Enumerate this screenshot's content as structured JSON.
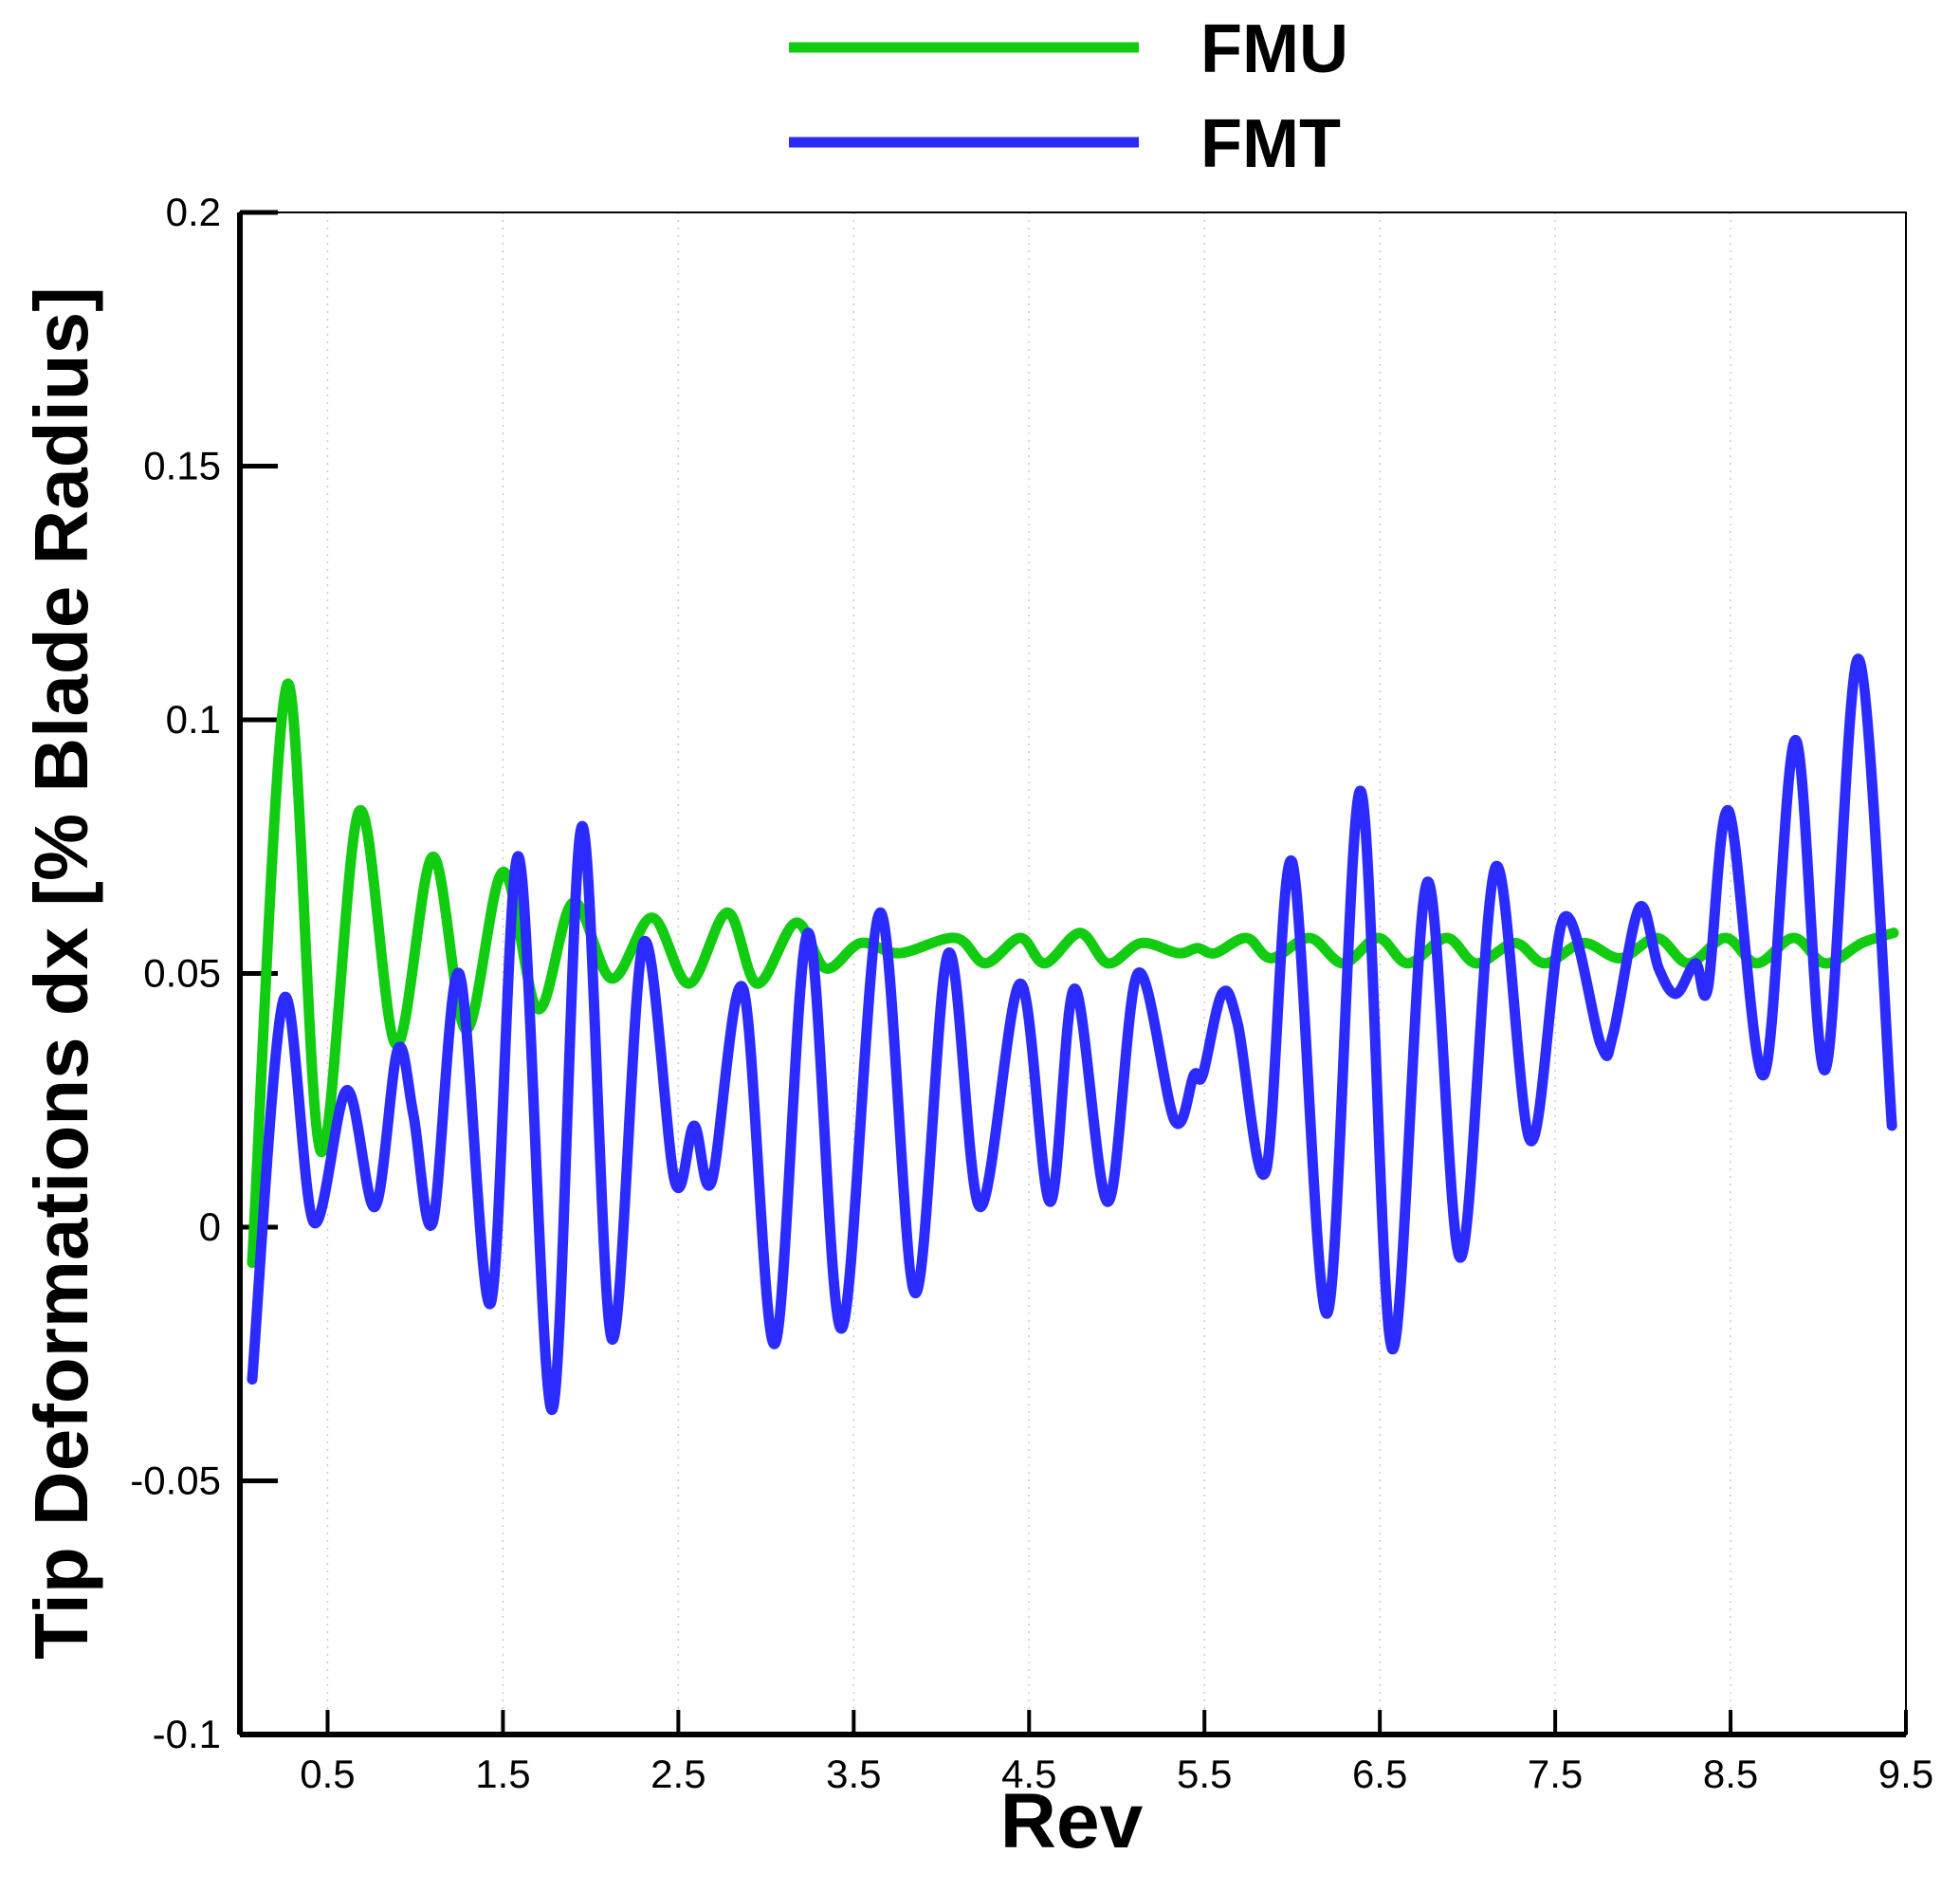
{
  "chart_data": {
    "type": "line",
    "xlabel": "Rev",
    "ylabel": "Tip Deformations dx [% Blade Radius]",
    "xlim": [
      0,
      9.5
    ],
    "ylim": [
      -0.1,
      0.2
    ],
    "xticks": [
      0.5,
      1.5,
      2.5,
      3.5,
      4.5,
      5.5,
      6.5,
      7.5,
      8.5,
      9.5
    ],
    "yticks": [
      -0.1,
      -0.05,
      0,
      0.05,
      0.1,
      0.15,
      0.2
    ],
    "grid": true,
    "legend": "top",
    "series": [
      {
        "name": "FMU",
        "color": "#11cc11",
        "x": [
          0.07,
          0.27,
          0.46,
          0.68,
          0.89,
          1.1,
          1.29,
          1.5,
          1.7,
          1.9,
          2.12,
          2.35,
          2.56,
          2.78,
          2.95,
          3.17,
          3.34,
          3.54,
          3.76,
          4.08,
          4.25,
          4.45,
          4.59,
          4.79,
          4.95,
          5.14,
          5.35,
          5.46,
          5.56,
          5.74,
          5.88,
          6.1,
          6.29,
          6.49,
          6.66,
          6.88,
          7.05,
          7.27,
          7.44,
          7.66,
          7.87,
          8.08,
          8.26,
          8.47,
          8.65,
          8.86,
          9.04,
          9.25,
          9.43
        ],
        "values": [
          -0.007,
          0.107,
          0.015,
          0.082,
          0.036,
          0.073,
          0.039,
          0.07,
          0.043,
          0.064,
          0.049,
          0.061,
          0.048,
          0.062,
          0.048,
          0.06,
          0.051,
          0.056,
          0.054,
          0.057,
          0.052,
          0.057,
          0.052,
          0.058,
          0.052,
          0.056,
          0.054,
          0.055,
          0.054,
          0.057,
          0.053,
          0.057,
          0.052,
          0.057,
          0.052,
          0.057,
          0.052,
          0.056,
          0.052,
          0.056,
          0.053,
          0.057,
          0.052,
          0.057,
          0.052,
          0.057,
          0.052,
          0.056,
          0.058
        ]
      },
      {
        "name": "FMT",
        "color": "#2b2bff",
        "x": [
          0.07,
          0.25,
          0.42,
          0.61,
          0.77,
          0.9,
          0.99,
          1.1,
          1.25,
          1.43,
          1.59,
          1.78,
          1.95,
          2.12,
          2.3,
          2.48,
          2.59,
          2.69,
          2.87,
          3.05,
          3.24,
          3.43,
          3.65,
          3.85,
          4.04,
          4.22,
          4.45,
          4.62,
          4.76,
          4.95,
          5.12,
          5.33,
          5.44,
          5.49,
          5.6,
          5.69,
          5.85,
          6,
          6.2,
          6.39,
          6.57,
          6.77,
          6.96,
          7.16,
          7.36,
          7.55,
          7.76,
          7.83,
          7.98,
          8.09,
          8.19,
          8.3,
          8.37,
          8.49,
          8.69,
          8.87,
          9.04,
          9.23,
          9.42
        ],
        "values": [
          -0.03,
          0.045,
          0.001,
          0.027,
          0.004,
          0.035,
          0.022,
          0.001,
          0.05,
          -0.015,
          0.073,
          -0.036,
          0.079,
          -0.022,
          0.056,
          0.009,
          0.02,
          0.009,
          0.047,
          -0.023,
          0.058,
          -0.02,
          0.062,
          -0.013,
          0.054,
          0.004,
          0.048,
          0.005,
          0.047,
          0.005,
          0.05,
          0.021,
          0.03,
          0.03,
          0.046,
          0.04,
          0.011,
          0.072,
          -0.017,
          0.086,
          -0.024,
          0.068,
          -0.006,
          0.071,
          0.017,
          0.061,
          0.036,
          0.038,
          0.063,
          0.051,
          0.046,
          0.052,
          0.047,
          0.082,
          0.03,
          0.096,
          0.031,
          0.112,
          0.02
        ]
      }
    ]
  }
}
